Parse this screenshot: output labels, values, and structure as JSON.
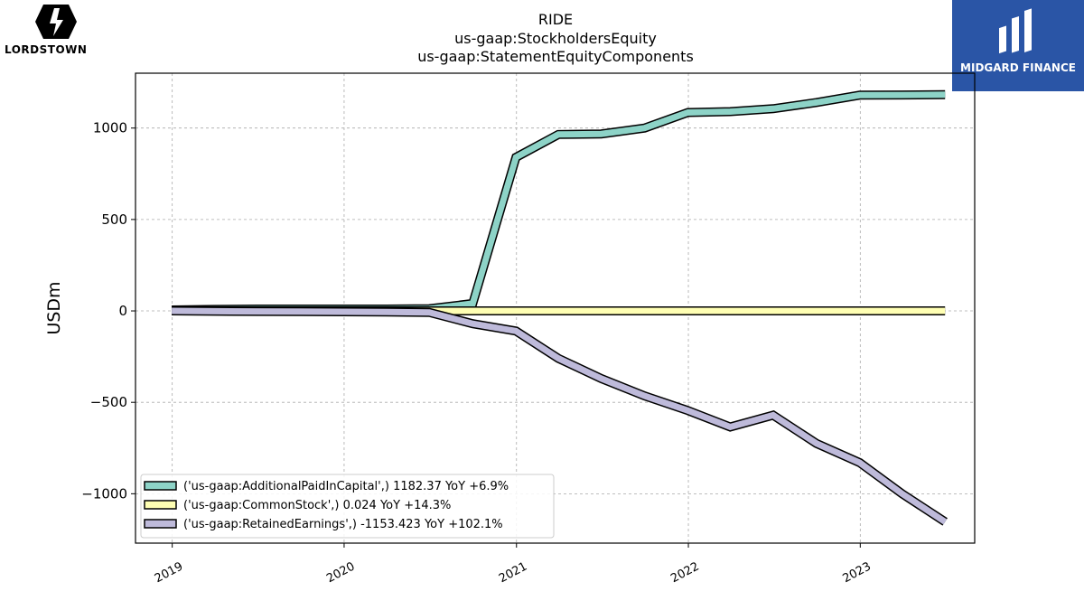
{
  "brands": {
    "left_wordmark": "LORDSTOWN",
    "right_wordmark": "MIDGARD FINANCE"
  },
  "chart_data": {
    "type": "line",
    "title_lines": [
      "RIDE",
      "us-gaap:StockholdersEquity",
      "us-gaap:StatementEquityComponents"
    ],
    "xlabel": "",
    "ylabel": "USDm",
    "xlim": [
      "2018-10-15",
      "2023-09-01"
    ],
    "ylim": [
      -1270,
      1300
    ],
    "x_ticks": [
      "2019",
      "2020",
      "2021",
      "2022",
      "2023"
    ],
    "y_ticks": [
      1000,
      500,
      0,
      -500,
      -1000
    ],
    "y_tick_labels": [
      "1000",
      "500",
      "0",
      "−500",
      "−1000"
    ],
    "grid": true,
    "legend_position": "lower-left",
    "series": [
      {
        "name": "('us-gaap:AdditionalPaidInCapital',) 1182.37 YoY +6.9%",
        "color": "#8dd3c7",
        "points": [
          [
            "2018-12-31",
            5
          ],
          [
            "2019-03-31",
            8
          ],
          [
            "2019-06-30",
            10
          ],
          [
            "2019-09-30",
            10
          ],
          [
            "2019-12-31",
            10
          ],
          [
            "2020-03-31",
            10
          ],
          [
            "2020-06-30",
            12
          ],
          [
            "2020-09-30",
            40
          ],
          [
            "2020-12-31",
            840
          ],
          [
            "2021-03-31",
            965
          ],
          [
            "2021-06-30",
            968
          ],
          [
            "2021-09-30",
            1000
          ],
          [
            "2021-12-31",
            1085
          ],
          [
            "2022-03-31",
            1090
          ],
          [
            "2022-06-30",
            1106
          ],
          [
            "2022-09-30",
            1140
          ],
          [
            "2022-12-31",
            1180
          ],
          [
            "2023-03-31",
            1181
          ],
          [
            "2023-06-30",
            1182.37
          ]
        ]
      },
      {
        "name": "('us-gaap:CommonStock',) 0.024 YoY +14.3%",
        "color": "#ffffb3",
        "points": [
          [
            "2018-12-31",
            0
          ],
          [
            "2019-12-31",
            0
          ],
          [
            "2020-09-30",
            0
          ],
          [
            "2020-12-31",
            0.017
          ],
          [
            "2021-12-31",
            0.02
          ],
          [
            "2022-06-30",
            0.021
          ],
          [
            "2022-12-31",
            0.022
          ],
          [
            "2023-06-30",
            0.024
          ]
        ]
      },
      {
        "name": "('us-gaap:RetainedEarnings',) -1153.423 YoY +102.1%",
        "color": "#bebada",
        "points": [
          [
            "2018-12-31",
            0
          ],
          [
            "2019-03-31",
            -2
          ],
          [
            "2019-06-30",
            -3
          ],
          [
            "2019-09-30",
            -4
          ],
          [
            "2019-12-31",
            -5
          ],
          [
            "2020-03-31",
            -6
          ],
          [
            "2020-06-30",
            -8
          ],
          [
            "2020-09-30",
            -70
          ],
          [
            "2020-12-31",
            -110
          ],
          [
            "2021-03-31",
            -260
          ],
          [
            "2021-06-30",
            -370
          ],
          [
            "2021-09-30",
            -465
          ],
          [
            "2021-12-31",
            -545
          ],
          [
            "2022-03-31",
            -635
          ],
          [
            "2022-06-30",
            -570
          ],
          [
            "2022-09-30",
            -725
          ],
          [
            "2022-12-31",
            -830
          ],
          [
            "2023-03-31",
            -1000
          ],
          [
            "2023-06-30",
            -1153.423
          ]
        ]
      }
    ]
  }
}
